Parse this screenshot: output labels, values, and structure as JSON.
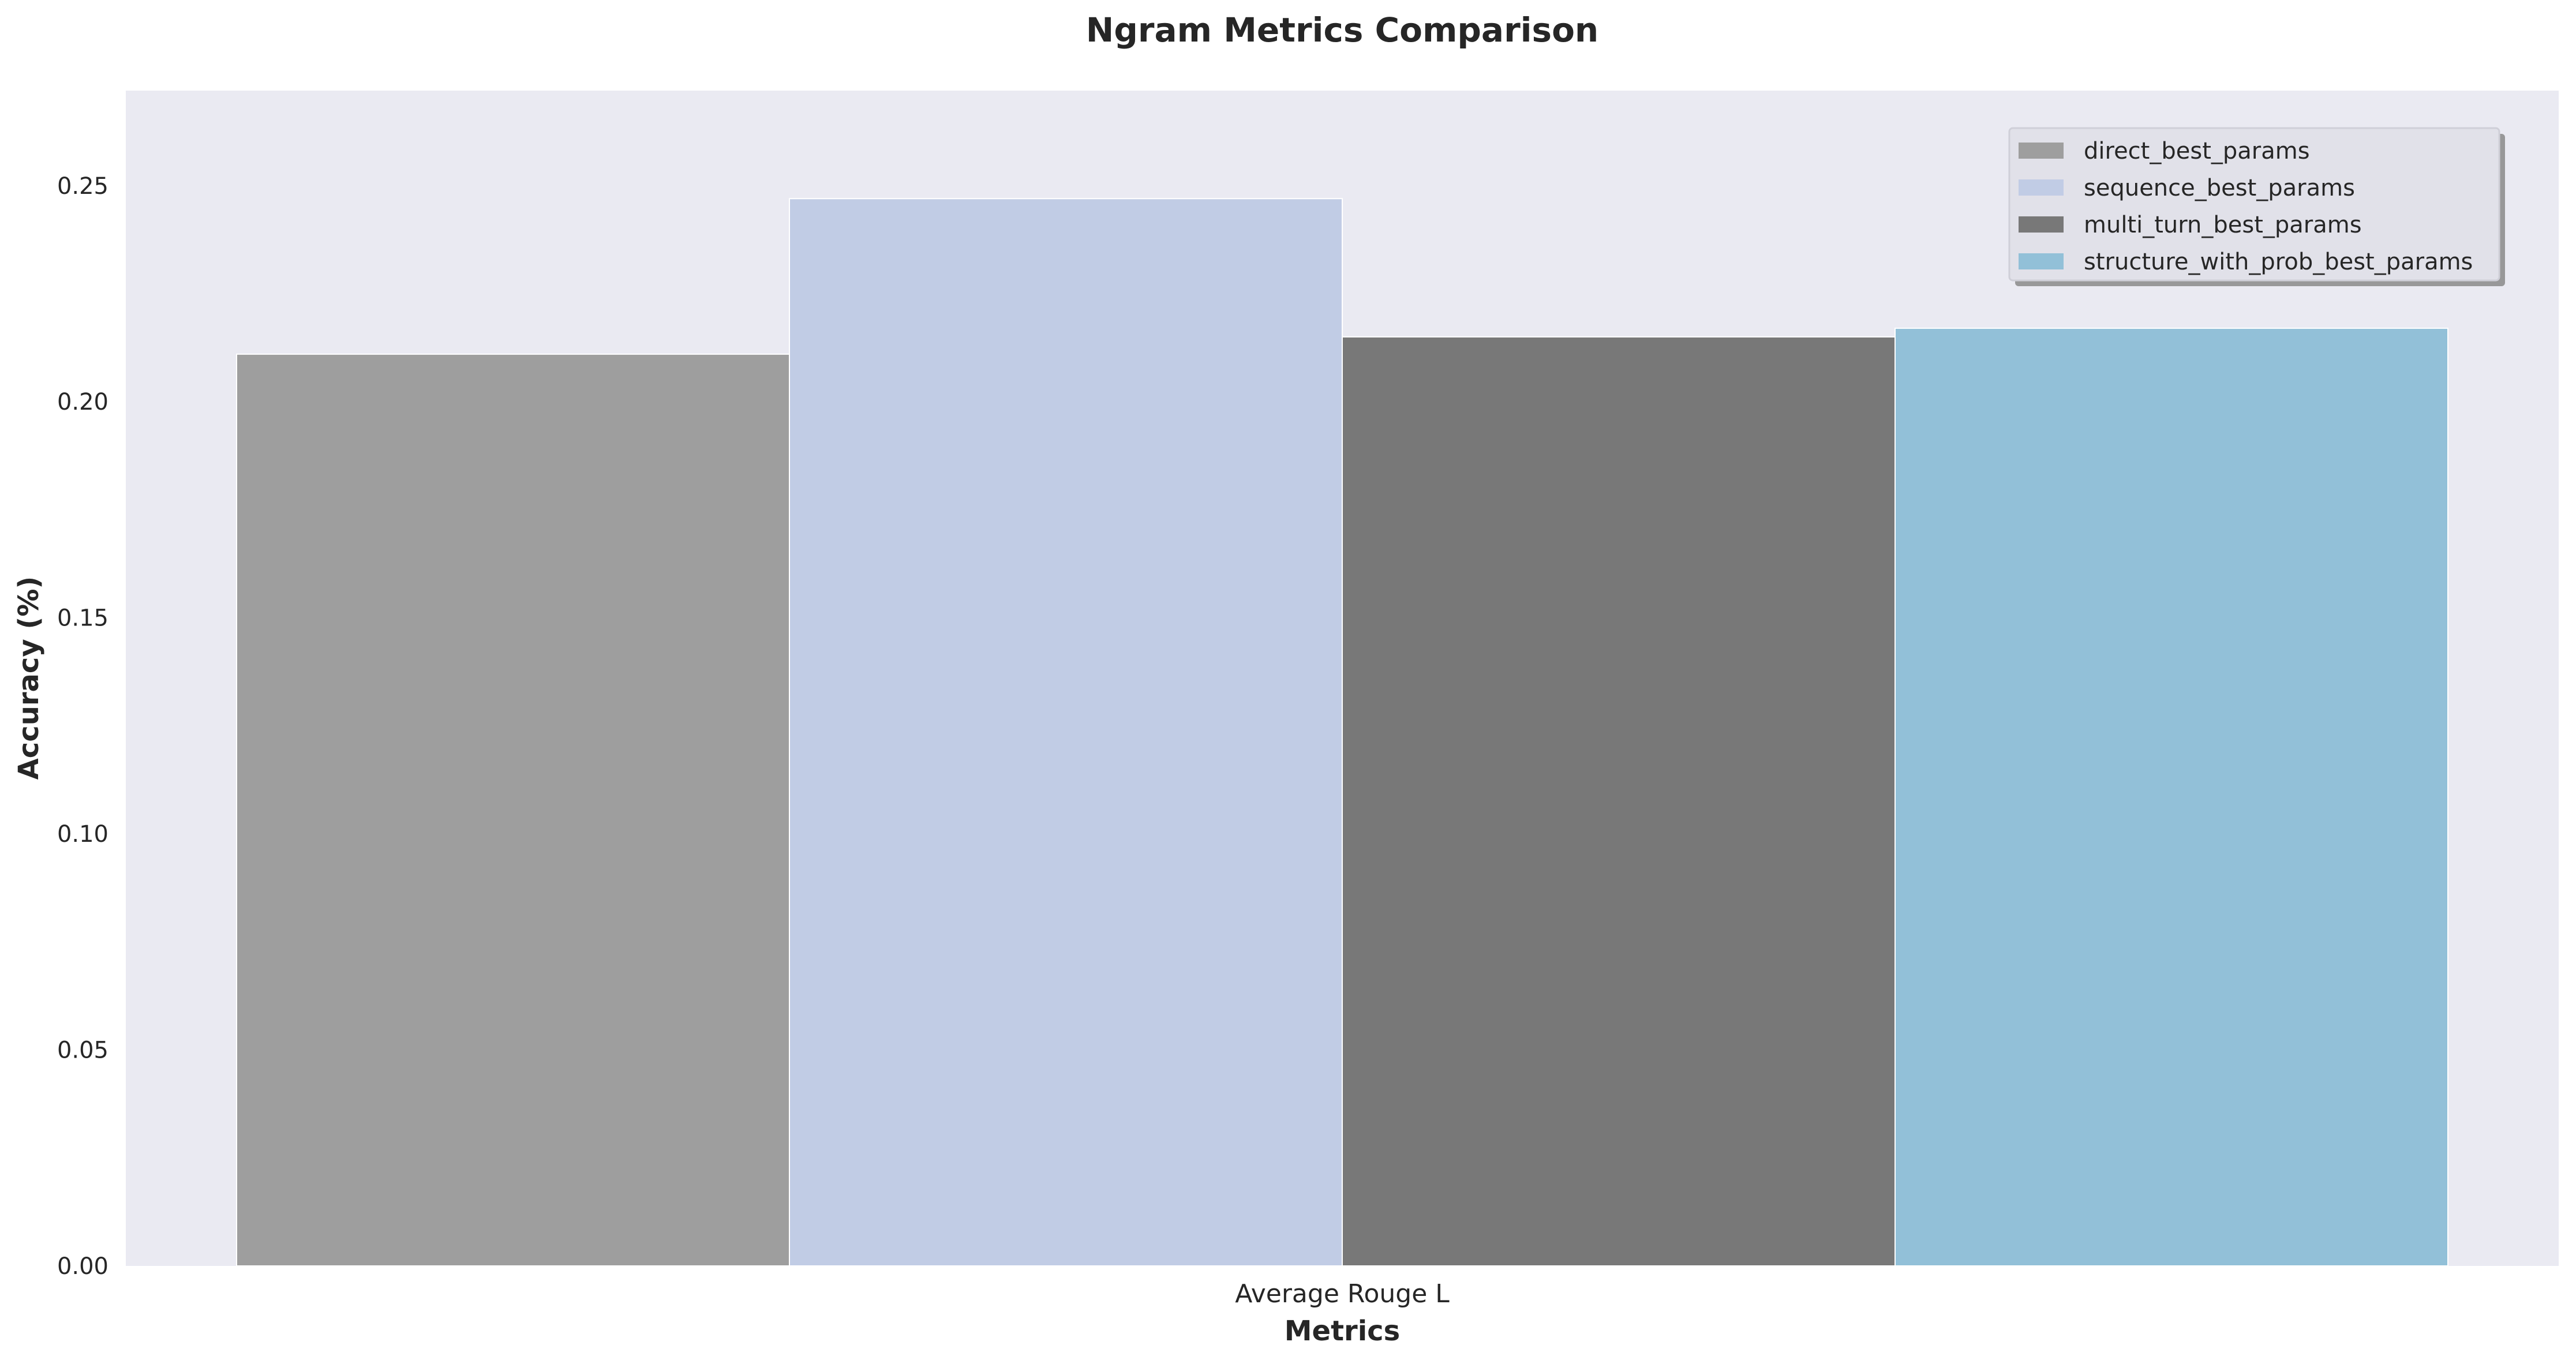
{
  "chart_data": {
    "type": "bar",
    "title": "Ngram Metrics Comparison",
    "xlabel": "Metrics",
    "ylabel": "Accuracy (%)",
    "categories": [
      "Average Rouge L"
    ],
    "ylim": [
      0,
      0.272
    ],
    "yticks": [
      "0.00",
      "0.05",
      "0.10",
      "0.15",
      "0.20",
      "0.25"
    ],
    "grid": false,
    "legend_position": "top-right",
    "background_color": "#eaeaf2",
    "series": [
      {
        "name": "direct_best_params",
        "values": [
          0.211
        ],
        "color": "#9e9e9e"
      },
      {
        "name": "sequence_best_params",
        "values": [
          0.247
        ],
        "color": "#c1cce5"
      },
      {
        "name": "multi_turn_best_params",
        "values": [
          0.215
        ],
        "color": "#787878"
      },
      {
        "name": "structure_with_prob_best_params",
        "values": [
          0.217
        ],
        "color": "#92c0d8"
      }
    ]
  }
}
